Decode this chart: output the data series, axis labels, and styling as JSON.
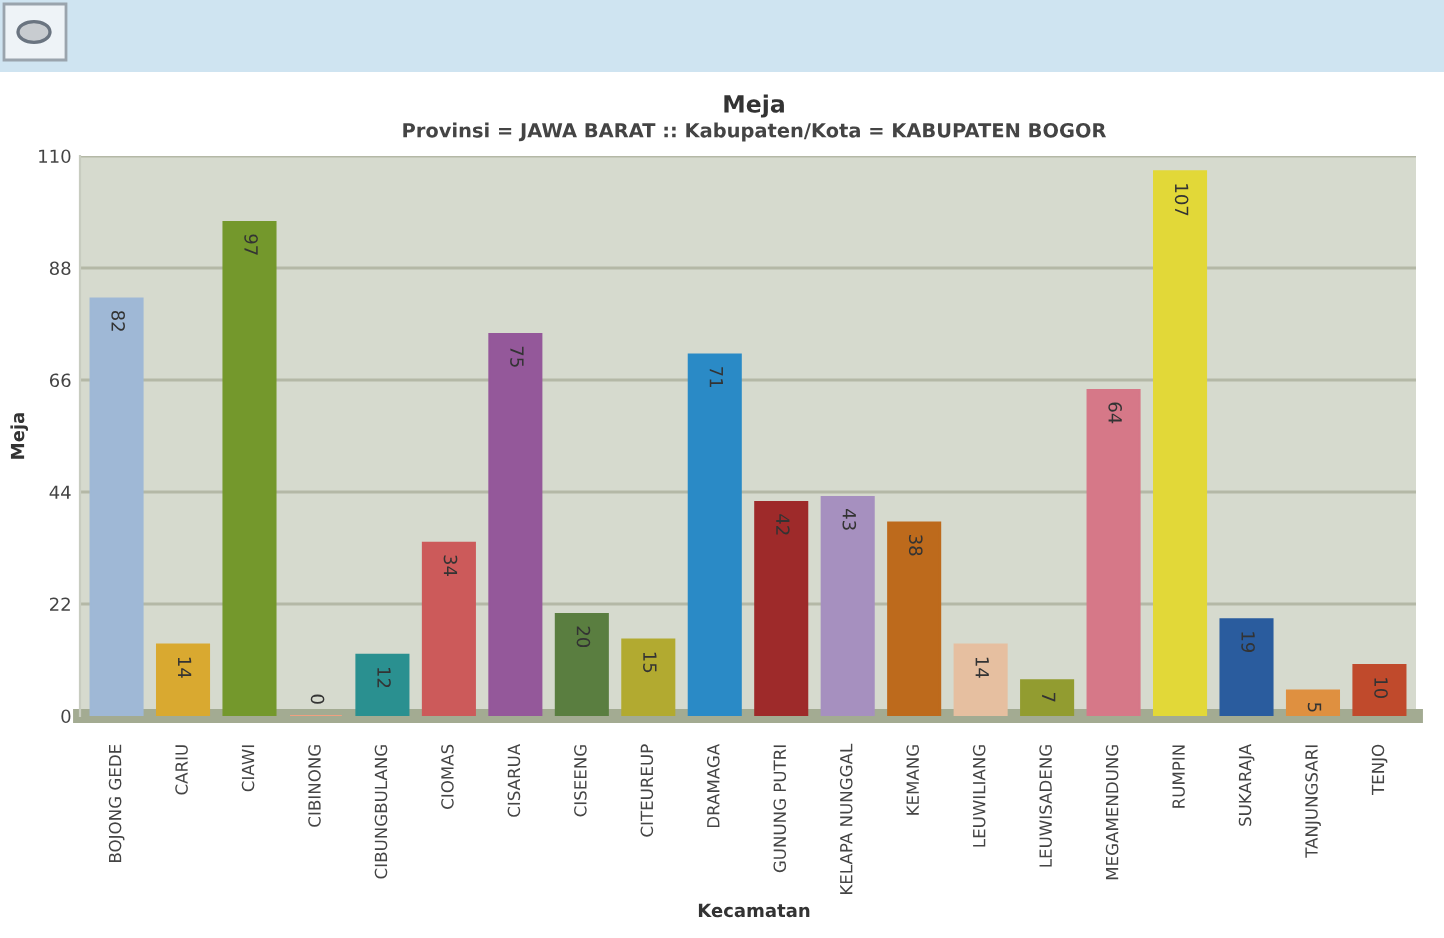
{
  "chart_data": {
    "type": "bar",
    "title": "Meja",
    "subtitle": "Provinsi = JAWA BARAT :: Kabupaten/Kota = KABUPATEN BOGOR",
    "xlabel": "Kecamatan",
    "ylabel": "Meja",
    "categories": [
      "BOJONG GEDE",
      "CARIU",
      "CIAWI",
      "CIBINONG",
      "CIBUNGBULANG",
      "CIOMAS",
      "CISARUA",
      "CISEENG",
      "CITEUREUP",
      "DRAMAGA",
      "GUNUNG PUTRI",
      "KELAPA NUNGGAL",
      "KEMANG",
      "LEUWILIANG",
      "LEUWISADENG",
      "MEGAMENDUNG",
      "RUMPIN",
      "SUKARAJA",
      "TANJUNGSARI",
      "TENJO"
    ],
    "values": [
      82,
      14,
      97,
      0,
      12,
      34,
      75,
      20,
      15,
      71,
      42,
      43,
      38,
      14,
      7,
      64,
      107,
      19,
      5,
      10
    ],
    "colors": [
      "#9fb8d6",
      "#d9a930",
      "#74982c",
      "#f0a080",
      "#2a9090",
      "#cc5a5a",
      "#94589a",
      "#5a7e40",
      "#b2aa30",
      "#2a8ac6",
      "#9e2a2a",
      "#a690bf",
      "#bd6a1c",
      "#e6bfa0",
      "#929c30",
      "#d67888",
      "#e2d838",
      "#2a5c9e",
      "#df9040",
      "#c04a2c"
    ],
    "ylim": [
      0,
      110
    ],
    "yticks": [
      0,
      22,
      44,
      66,
      88,
      110
    ],
    "grid": "y",
    "data_labels": true
  }
}
